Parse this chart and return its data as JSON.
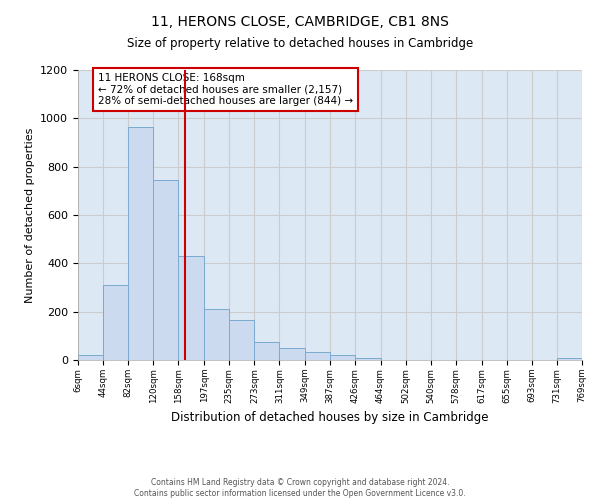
{
  "title1": "11, HERONS CLOSE, CAMBRIDGE, CB1 8NS",
  "title2": "Size of property relative to detached houses in Cambridge",
  "xlabel": "Distribution of detached houses by size in Cambridge",
  "ylabel": "Number of detached properties",
  "bar_edges": [
    6,
    44,
    82,
    120,
    158,
    197,
    235,
    273,
    311,
    349,
    387,
    426,
    464,
    502,
    540,
    578,
    617,
    655,
    693,
    731,
    769
  ],
  "bar_heights": [
    20,
    310,
    965,
    745,
    430,
    210,
    165,
    75,
    48,
    35,
    20,
    10,
    0,
    0,
    0,
    0,
    0,
    0,
    0,
    10
  ],
  "bar_color": "#ccdaf0",
  "bar_edge_color": "#7aaad0",
  "property_line_x": 168,
  "property_line_color": "#cc0000",
  "annotation_line1": "11 HERONS CLOSE: 168sqm",
  "annotation_line2": "← 72% of detached houses are smaller (2,157)",
  "annotation_line3": "28% of semi-detached houses are larger (844) →",
  "annotation_box_color": "#cc0000",
  "ylim": [
    0,
    1200
  ],
  "yticks": [
    0,
    200,
    400,
    600,
    800,
    1000,
    1200
  ],
  "grid_color": "#cccccc",
  "background_color": "#ffffff",
  "plot_bg_color": "#dde8f5",
  "footer_text": "Contains HM Land Registry data © Crown copyright and database right 2024.\nContains public sector information licensed under the Open Government Licence v3.0.",
  "tick_labels": [
    "6sqm",
    "44sqm",
    "82sqm",
    "120sqm",
    "158sqm",
    "197sqm",
    "235sqm",
    "273sqm",
    "311sqm",
    "349sqm",
    "387sqm",
    "426sqm",
    "464sqm",
    "502sqm",
    "540sqm",
    "578sqm",
    "617sqm",
    "655sqm",
    "693sqm",
    "731sqm",
    "769sqm"
  ],
  "title1_fontsize": 10,
  "title2_fontsize": 8.5,
  "ylabel_fontsize": 8,
  "xlabel_fontsize": 8.5
}
